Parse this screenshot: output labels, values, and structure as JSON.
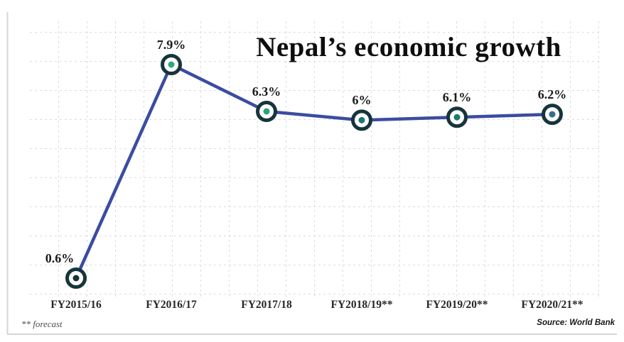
{
  "chart_data": {
    "type": "line",
    "title": "Nepal’s economic growth",
    "categories": [
      "FY2015/16",
      "FY2016/17",
      "FY2017/18",
      "FY2018/19**",
      "FY2019/20**",
      "FY2020/21**"
    ],
    "values": [
      0.6,
      7.9,
      6.3,
      6.0,
      6.1,
      6.2
    ],
    "point_labels": [
      "0.6%",
      "7.9%",
      "6.3%",
      "6%",
      "6.1%",
      "6.2%"
    ],
    "unit": "percent",
    "xlabel": "",
    "ylabel": "",
    "y_axis_visible": false,
    "grid": "dashed",
    "legend": "none",
    "colors": {
      "line": "#3b4ca1",
      "marker_ring": "#16343c",
      "marker_dots": [
        "#17333a",
        "#35a67b",
        "#2ba377",
        "#1d7673",
        "#1e7a72",
        "#326f92"
      ],
      "grid_line": "#dcdcdc",
      "axis_line": "#d6d6d6",
      "title_text": "#0e0e0e",
      "label_text": "#1b1b1b"
    }
  },
  "footer": {
    "forecast_note": "** forecast",
    "source": "Source: World Bank"
  }
}
